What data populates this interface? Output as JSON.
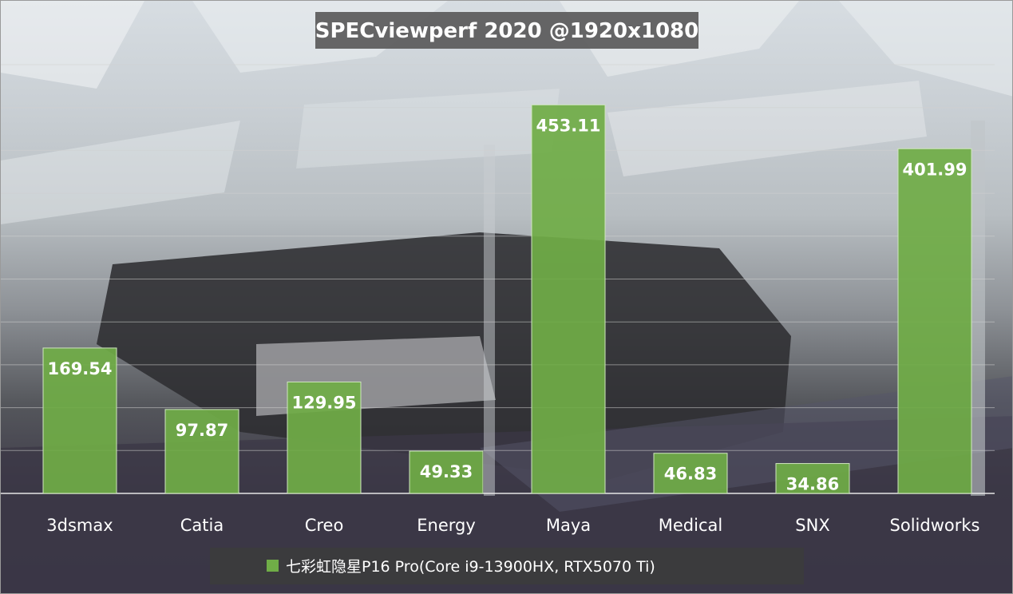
{
  "chart_data": {
    "type": "bar",
    "title": "SPECviewperf 2020 @1920x1080",
    "categories": [
      "3dsmax",
      "Catia",
      "Creo",
      "Energy",
      "Maya",
      "Medical",
      "SNX",
      "Solidworks"
    ],
    "series": [
      {
        "name": "七彩虹隐星P16 Pro(Core i9-13900HX, RTX5070 Ti)",
        "values": [
          169.54,
          97.87,
          129.95,
          49.33,
          453.11,
          46.83,
          34.86,
          401.99
        ],
        "labels": [
          "169.54",
          "97.87",
          "129.95",
          "49.33",
          "453.11",
          "46.83",
          "34.86",
          "401.99"
        ]
      }
    ],
    "ylim": [
      0,
      500
    ],
    "xlabel": "",
    "ylabel": "",
    "grid": true,
    "legend_position": "bottom",
    "colors": {
      "bar_fill": "#70ad47",
      "bar_fill_light": "#86c25a",
      "bar_border": "#cfe6bf",
      "title_bg": "#5a5a5a",
      "legend_bg": "#3c3c3c",
      "gridline": "#d0d0d0"
    }
  }
}
